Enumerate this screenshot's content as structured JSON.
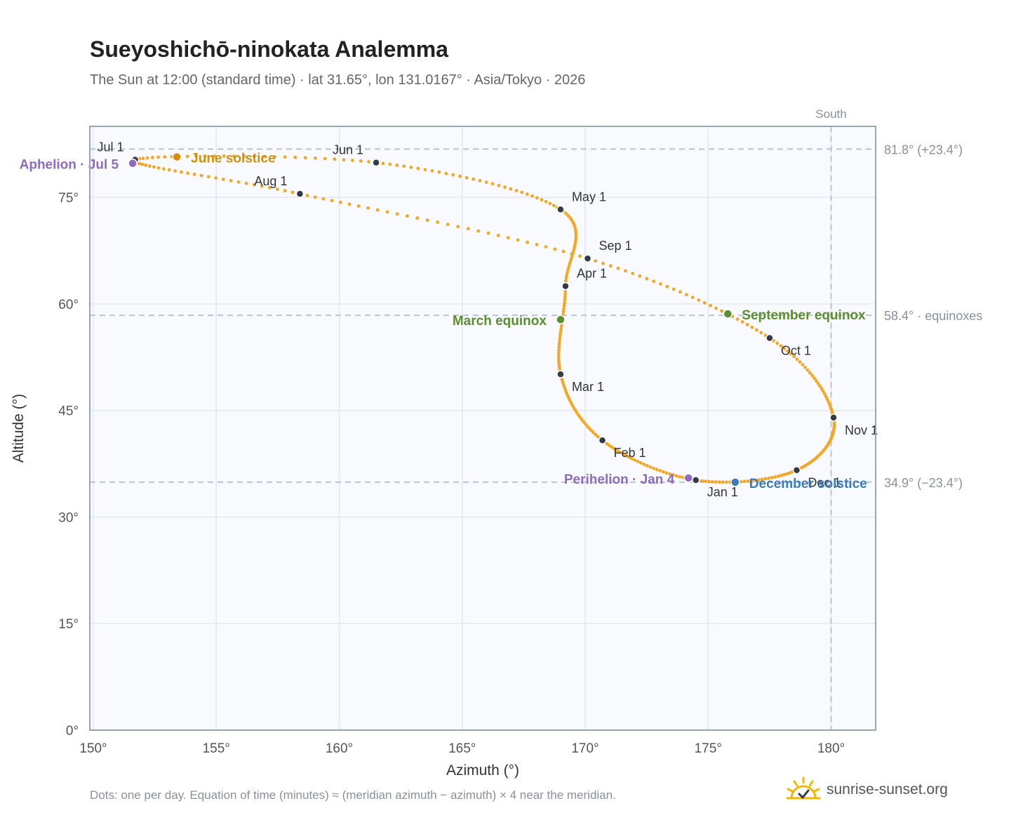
{
  "header": {
    "title": "Sueyoshichō-ninokata Analemma",
    "subtitle": "The Sun at 12:00 (standard time) · lat 31.65°, lon 131.0167° · Asia/Tokyo · 2026"
  },
  "footer": {
    "note": "Dots: one per day. Equation of time (minutes) ≈ (meridian azimuth − azimuth) × 4 near the meridian.",
    "brand": "sunrise-sunset.org"
  },
  "colors": {
    "curve": "#f5a623",
    "month": "#333a45",
    "solstice_june": "#d4900a",
    "solstice_december": "#3a7bbf",
    "equinox": "#5a8f2e",
    "apsis": "#8e6bbf",
    "reference": "#b8c4d4",
    "plot_bg": "#f8fafd",
    "grid": "#e2e8f0",
    "frame": "#9aa5b4",
    "brand_sun": "#f2b800"
  },
  "icons": {
    "brand": "sun-check-icon"
  },
  "chart_data": {
    "type": "scatter",
    "xlabel": "Azimuth (°)",
    "ylabel": "Altitude (°)",
    "xlim": [
      150,
      182
    ],
    "ylim": [
      0,
      85
    ],
    "grid": true,
    "x_ticks": [
      150,
      155,
      160,
      165,
      170,
      175,
      180
    ],
    "x_tick_labels": [
      "150°",
      "155°",
      "160°",
      "165°",
      "170°",
      "175°",
      "180°"
    ],
    "y_ticks": [
      0,
      15,
      30,
      45,
      60,
      75
    ],
    "y_tick_labels": [
      "0°",
      "15°",
      "30°",
      "45°",
      "60°",
      "75°"
    ],
    "meridian": {
      "azimuth": 180,
      "label": "South"
    },
    "reference_lines": [
      {
        "altitude": 81.8,
        "label": "81.8° (+23.4°)"
      },
      {
        "altitude": 58.4,
        "label": "58.4° · equinoxes"
      },
      {
        "altitude": 34.9,
        "label": "34.9° (−23.4°)"
      }
    ],
    "analemma_monthly": [
      {
        "label": "Jan 1",
        "az": 174.5,
        "alt": 35.2
      },
      {
        "label": "Feb 1",
        "az": 170.7,
        "alt": 40.8
      },
      {
        "label": "Mar 1",
        "az": 169.0,
        "alt": 50.1
      },
      {
        "label": "Apr 1",
        "az": 169.2,
        "alt": 62.5
      },
      {
        "label": "May 1",
        "az": 169.0,
        "alt": 73.3
      },
      {
        "label": "Jun 1",
        "az": 161.5,
        "alt": 79.9
      },
      {
        "label": "Jul 1",
        "az": 151.7,
        "alt": 80.3
      },
      {
        "label": "Aug 1",
        "az": 158.4,
        "alt": 75.5
      },
      {
        "label": "Sep 1",
        "az": 170.1,
        "alt": 66.4
      },
      {
        "label": "Oct 1",
        "az": 177.5,
        "alt": 55.2
      },
      {
        "label": "Nov 1",
        "az": 180.1,
        "alt": 44.0
      },
      {
        "label": "Dec 1",
        "az": 178.6,
        "alt": 36.6
      }
    ],
    "events": [
      {
        "label": "March equinox",
        "az": 169.0,
        "alt": 57.8,
        "kind": "equinox"
      },
      {
        "label": "June solstice",
        "az": 153.4,
        "alt": 80.7,
        "kind": "solstice_june"
      },
      {
        "label": "Aphelion · Jul 5",
        "az": 151.6,
        "alt": 79.8,
        "kind": "apsis"
      },
      {
        "label": "September equinox",
        "az": 175.8,
        "alt": 58.6,
        "kind": "equinox"
      },
      {
        "label": "December solstice",
        "az": 176.1,
        "alt": 34.9,
        "kind": "solstice_december"
      },
      {
        "label": "Perihelion · Jan 4",
        "az": 174.2,
        "alt": 35.5,
        "kind": "apsis"
      }
    ]
  }
}
